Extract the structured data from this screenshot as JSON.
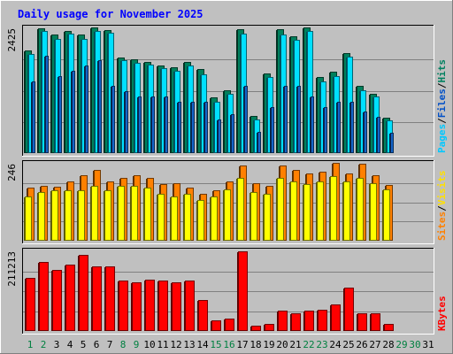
{
  "chart_data": {
    "type": "bar",
    "title": "Daily usage for November 2025",
    "categories": [
      "1",
      "2",
      "3",
      "4",
      "5",
      "6",
      "7",
      "8",
      "9",
      "10",
      "11",
      "12",
      "13",
      "14",
      "15",
      "16",
      "17",
      "18",
      "19",
      "20",
      "21",
      "22",
      "23",
      "24",
      "25",
      "26",
      "27",
      "28",
      "29",
      "30",
      "31"
    ],
    "weekend_days": [
      "1",
      "2",
      "8",
      "9",
      "15",
      "16",
      "22",
      "23",
      "29",
      "30"
    ],
    "panels": [
      {
        "id": "hits-files-pages",
        "ylabels": [
          "Pages",
          "Files",
          "Hits"
        ],
        "ytick": "2425",
        "ymax": 2425,
        "series": [
          {
            "name": "Hits",
            "color": "#00805c",
            "values": [
              2000,
              2425,
              2310,
              2370,
              2300,
              2445,
              2395,
              1850,
              1815,
              1765,
              1700,
              1660,
              1765,
              1630,
              1075,
              1215,
              2405,
              730,
              1550,
              2400,
              2275,
              2445,
              1475,
              1585,
              1950,
              1300,
              1160,
              690,
              0,
              0,
              0
            ]
          },
          {
            "name": "Files",
            "color": "#00e0ff",
            "values": [
              1920,
              2365,
              2225,
              2315,
              2225,
              2375,
              2345,
              1800,
              1760,
              1725,
              1650,
              1600,
              1700,
              1535,
              1000,
              1150,
              2320,
              660,
              1475,
              2300,
              2205,
              2375,
              1400,
              1500,
              1880,
              1225,
              1100,
              630,
              0,
              0,
              0
            ]
          },
          {
            "name": "Pages",
            "color": "#1464c8",
            "values": [
              1400,
              1900,
              1500,
              1600,
              1700,
              1800,
              1300,
              1200,
              1100,
              1100,
              1100,
              1000,
              1000,
              1000,
              650,
              750,
              1300,
              420,
              900,
              1300,
              1300,
              1100,
              900,
              1000,
              1000,
              800,
              700,
              400,
              0,
              0,
              0
            ]
          }
        ]
      },
      {
        "id": "visits-sites",
        "ylabels": [
          "Sites",
          "Visits"
        ],
        "ytick": "246",
        "ymax": 246,
        "series": [
          {
            "name": "Visits",
            "color": "#ff8000",
            "values": [
              170,
              175,
              172,
              190,
              210,
              225,
              190,
              200,
              210,
              200,
              180,
              185,
              170,
              150,
              162,
              190,
              240,
              185,
              175,
              240,
              225,
              215,
              220,
              250,
              215,
              245,
              210,
              178,
              0,
              0,
              0
            ]
          },
          {
            "name": "Sites",
            "color": "#ffff00",
            "values": [
              140,
              155,
              162,
              160,
              160,
              175,
              160,
              175,
              175,
              170,
              150,
              140,
              150,
              130,
              140,
              165,
              200,
              155,
              150,
              200,
              190,
              180,
              190,
              205,
              190,
              200,
              185,
              165,
              0,
              0,
              0
            ]
          }
        ]
      },
      {
        "id": "kbytes",
        "ylabels": [
          "KBytes"
        ],
        "ytick": "211213",
        "ymax": 211213,
        "series": [
          {
            "name": "KBytes",
            "color": "#ff0000",
            "values": [
              141000,
              184000,
              161000,
              176000,
              201000,
              171000,
              171000,
              134000,
              130000,
              136000,
              134000,
              130000,
              134000,
              83000,
              28000,
              32000,
              211213,
              15000,
              19000,
              53000,
              48000,
              55000,
              57000,
              71000,
              114000,
              48000,
              48000,
              19000,
              0,
              0,
              0
            ]
          }
        ]
      }
    ]
  }
}
